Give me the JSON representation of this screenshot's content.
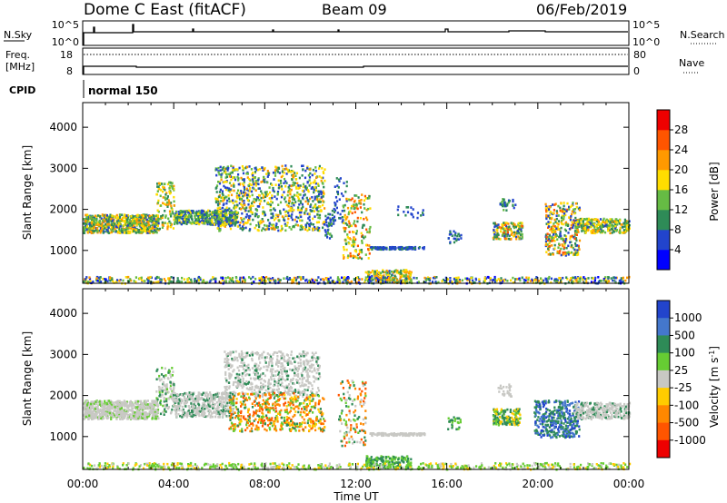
{
  "header": {
    "title": "Dome C East (fitACF)",
    "beam": "Beam 09",
    "date": "06/Feb/2019"
  },
  "panels": {
    "nsky_label": "N.Sky",
    "nsky_ticks": [
      "10^5",
      "10^0"
    ],
    "nsearch_label": "N.Search",
    "nsearch_ticks": [
      "10^5",
      "10^0"
    ],
    "freq_label": "Freq.",
    "freq_unit": "[MHz]",
    "freq_ticks": [
      "18",
      "8"
    ],
    "nave_label": "Nave",
    "nave_ticks": [
      "80",
      "0"
    ],
    "cpid_label": "CPID",
    "cpid_value": "normal 150"
  },
  "colors": {
    "power": [
      "#0000ff",
      "#2244cc",
      "#2e8b57",
      "#66bb44",
      "#ffdd00",
      "#ff9900",
      "#ff5500",
      "#ee0000"
    ],
    "velocity": [
      "#2244cc",
      "#4477cc",
      "#2e8b57",
      "#66cc33",
      "#c8c8c4",
      "#ffcc00",
      "#ff8800",
      "#ff5500",
      "#ee0000"
    ]
  },
  "chart_data": [
    {
      "type": "heatmap",
      "name": "power",
      "ylabel": "Slant Range [km]",
      "ylim": [
        200,
        4600
      ],
      "yticks": [
        1000,
        2000,
        3000,
        4000
      ],
      "xlim": [
        0,
        24
      ],
      "colorbar_label": "Power [dB]",
      "colorbar_ticks": [
        "4",
        "8",
        "12",
        "16",
        "20",
        "24",
        "28"
      ],
      "blobs": [
        {
          "t": [
            0.0,
            3.3
          ],
          "r": [
            1450,
            1900
          ],
          "n": 700,
          "v": [
            6,
            24
          ]
        },
        {
          "t": [
            3.2,
            4.0
          ],
          "r": [
            1550,
            2700
          ],
          "n": 120,
          "v": [
            8,
            22
          ]
        },
        {
          "t": [
            4.0,
            6.8
          ],
          "r": [
            1650,
            2000
          ],
          "n": 420,
          "v": [
            4,
            18
          ]
        },
        {
          "t": [
            5.8,
            10.6
          ],
          "r": [
            1500,
            3100
          ],
          "n": 900,
          "v": [
            4,
            22
          ]
        },
        {
          "t": [
            10.6,
            11.0
          ],
          "r": [
            1300,
            2000
          ],
          "n": 40,
          "v": [
            4,
            14
          ]
        },
        {
          "t": [
            11.0,
            11.6
          ],
          "r": [
            1700,
            2900
          ],
          "n": 40,
          "v": [
            4,
            12
          ]
        },
        {
          "t": [
            11.4,
            12.6
          ],
          "r": [
            800,
            2400
          ],
          "n": 170,
          "v": [
            8,
            28
          ]
        },
        {
          "t": [
            12.6,
            15.0
          ],
          "r": [
            1050,
            1110
          ],
          "n": 120,
          "v": [
            4,
            10
          ]
        },
        {
          "t": [
            12.4,
            14.4
          ],
          "r": [
            250,
            550
          ],
          "n": 170,
          "v": [
            6,
            24
          ]
        },
        {
          "t": [
            13.8,
            15.0
          ],
          "r": [
            1800,
            2100
          ],
          "n": 20,
          "v": [
            4,
            10
          ]
        },
        {
          "t": [
            16.0,
            16.6
          ],
          "r": [
            1200,
            1500
          ],
          "n": 25,
          "v": [
            4,
            12
          ]
        },
        {
          "t": [
            18.0,
            19.3
          ],
          "r": [
            1300,
            1700
          ],
          "n": 160,
          "v": [
            6,
            26
          ]
        },
        {
          "t": [
            18.3,
            19.0
          ],
          "r": [
            2000,
            2300
          ],
          "n": 30,
          "v": [
            4,
            14
          ]
        },
        {
          "t": [
            20.3,
            21.8
          ],
          "r": [
            900,
            2200
          ],
          "n": 300,
          "v": [
            4,
            26
          ]
        },
        {
          "t": [
            21.6,
            24.0
          ],
          "r": [
            1450,
            1800
          ],
          "n": 300,
          "v": [
            6,
            22
          ]
        },
        {
          "t": [
            0.0,
            24.0
          ],
          "r": [
            220,
            380
          ],
          "n": 700,
          "v": [
            2,
            24
          ]
        }
      ]
    },
    {
      "type": "heatmap",
      "name": "velocity",
      "ylabel": "Slant Range [km]",
      "xlabel": "Time UT",
      "ylim": [
        200,
        4600
      ],
      "yticks": [
        1000,
        2000,
        3000,
        4000
      ],
      "xlim": [
        0,
        24
      ],
      "xticks": [
        "00:00",
        "04:00",
        "08:00",
        "12:00",
        "16:00",
        "20:00",
        "00:00"
      ],
      "colorbar_label": "Velocity [m s^-1]",
      "colorbar_ticks": [
        "1000",
        "500",
        "100",
        "25",
        "-25",
        "-100",
        "-500",
        "-1000"
      ],
      "blobs": [
        {
          "t": [
            0.0,
            3.3
          ],
          "r": [
            1450,
            1900
          ],
          "n": 700,
          "c": [
            4,
            4,
            4,
            4,
            3
          ]
        },
        {
          "t": [
            3.2,
            4.0
          ],
          "r": [
            1550,
            2700
          ],
          "n": 120,
          "c": [
            4,
            4,
            2,
            3
          ]
        },
        {
          "t": [
            4.0,
            6.6
          ],
          "r": [
            1500,
            2100
          ],
          "n": 460,
          "c": [
            4,
            4,
            4,
            2
          ]
        },
        {
          "t": [
            6.2,
            10.4
          ],
          "r": [
            2000,
            3100
          ],
          "n": 600,
          "c": [
            4,
            4,
            4,
            4,
            2
          ]
        },
        {
          "t": [
            6.4,
            10.6
          ],
          "r": [
            1150,
            2100
          ],
          "n": 520,
          "c": [
            6,
            6,
            7,
            5,
            2,
            3
          ]
        },
        {
          "t": [
            11.2,
            12.4
          ],
          "r": [
            800,
            2400
          ],
          "n": 130,
          "c": [
            2,
            3,
            6,
            7,
            4
          ]
        },
        {
          "t": [
            12.6,
            15.0
          ],
          "r": [
            1050,
            1110
          ],
          "n": 120,
          "c": [
            4
          ]
        },
        {
          "t": [
            12.4,
            14.4
          ],
          "r": [
            250,
            550
          ],
          "n": 170,
          "c": [
            3,
            2
          ]
        },
        {
          "t": [
            16.0,
            16.6
          ],
          "r": [
            1200,
            1500
          ],
          "n": 25,
          "c": [
            2,
            3
          ]
        },
        {
          "t": [
            18.0,
            19.2
          ],
          "r": [
            1300,
            1700
          ],
          "n": 150,
          "c": [
            2,
            2,
            3,
            5
          ]
        },
        {
          "t": [
            18.2,
            18.8
          ],
          "r": [
            2000,
            2300
          ],
          "n": 25,
          "c": [
            4
          ]
        },
        {
          "t": [
            19.8,
            21.8
          ],
          "r": [
            1000,
            1900
          ],
          "n": 360,
          "c": [
            0,
            1,
            2,
            2
          ]
        },
        {
          "t": [
            21.6,
            24.0
          ],
          "r": [
            1450,
            1850
          ],
          "n": 300,
          "c": [
            4,
            4,
            4,
            2
          ]
        },
        {
          "t": [
            0.0,
            24.0
          ],
          "r": [
            220,
            380
          ],
          "n": 600,
          "c": [
            3,
            3,
            5,
            4
          ]
        }
      ]
    }
  ]
}
